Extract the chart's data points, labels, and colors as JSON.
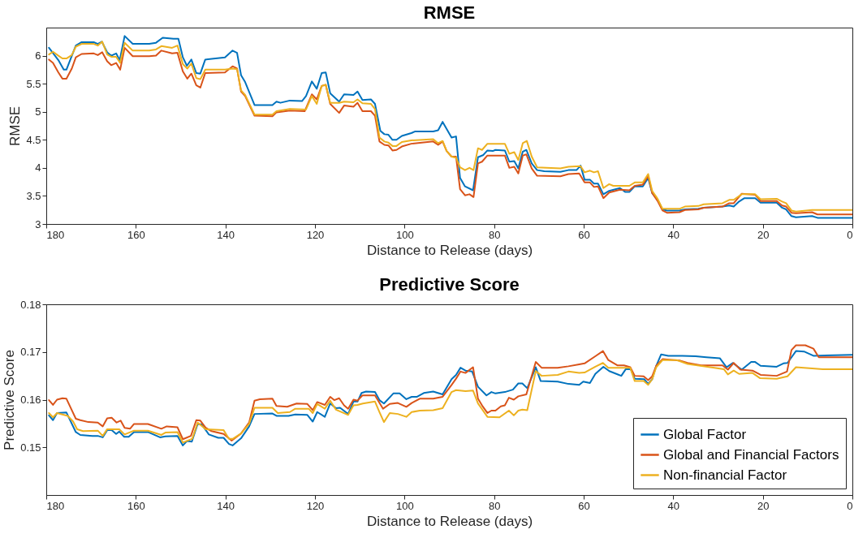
{
  "chart_data": [
    {
      "type": "line",
      "title": "RMSE",
      "xlabel": "Distance to Release (days)",
      "ylabel": "RMSE",
      "xlim": [
        180,
        0
      ],
      "xticks": [
        180,
        160,
        140,
        120,
        100,
        80,
        60,
        40,
        20,
        0
      ],
      "ylim": [
        3,
        6.5
      ],
      "yticks": [
        3,
        3.5,
        4,
        4.5,
        5,
        5.5,
        6
      ],
      "legend": false,
      "series": [
        {
          "color": "#0072bd",
          "x": [
            179.4,
            177.3,
            176.1,
            175.5,
            173.4,
            172.1,
            169.4,
            168.5,
            167.6,
            166.4,
            165.5,
            164.4,
            163.6,
            162.5,
            160.7,
            157.0,
            155.5,
            154.0,
            151.6,
            150.5,
            149.5,
            148.6,
            147.6,
            146.5,
            145.6,
            144.5,
            140.1,
            138.4,
            137.4,
            136.5,
            135.6,
            133.5,
            129.5,
            128.6,
            127.7,
            125.6,
            122.9,
            122.0,
            120.7,
            119.6,
            118.5,
            117.6,
            116.6,
            114.6,
            113.5,
            111.4,
            110.5,
            109.4,
            107.5,
            106.6,
            105.4,
            104.5,
            103.6,
            102.7,
            101.8,
            100.6,
            98.5,
            97.6,
            93.6,
            92.5,
            91.5,
            89.5,
            88.5,
            87.6,
            86.5,
            84.7,
            83.6,
            82.4,
            81.5,
            80.3,
            79.7,
            77.6,
            76.6,
            75.5,
            74.6,
            73.6,
            72.8,
            71.6,
            70.4,
            68.8,
            65.2,
            63.4,
            61.6,
            60.7,
            59.8,
            58.6,
            57.7,
            56.8,
            55.6,
            54.3,
            51.9,
            50.7,
            49.8,
            48.6,
            46.8,
            45.6,
            44.7,
            43.5,
            42.4,
            41.4,
            38.6,
            37.4,
            34.4,
            33.2,
            29.0,
            27.5,
            26.5,
            25.3,
            24.1,
            21.7,
            20.5,
            16.9,
            15.7,
            14.8,
            13.6,
            12.6,
            9.0,
            7.8,
            0
          ],
          "values": [
            6.14,
            5.92,
            5.75,
            5.75,
            6.18,
            6.24,
            6.24,
            6.21,
            6.25,
            6.06,
            6.0,
            6.04,
            5.92,
            6.35,
            6.21,
            6.21,
            6.23,
            6.32,
            6.3,
            6.3,
            5.97,
            5.82,
            5.93,
            5.69,
            5.68,
            5.93,
            5.97,
            6.09,
            6.05,
            5.65,
            5.53,
            5.12,
            5.12,
            5.18,
            5.16,
            5.2,
            5.19,
            5.28,
            5.54,
            5.41,
            5.69,
            5.7,
            5.33,
            5.18,
            5.31,
            5.3,
            5.36,
            5.21,
            5.22,
            5.14,
            4.66,
            4.6,
            4.59,
            4.5,
            4.5,
            4.57,
            4.62,
            4.65,
            4.65,
            4.67,
            4.82,
            4.54,
            4.56,
            3.82,
            3.67,
            3.6,
            4.19,
            4.23,
            4.31,
            4.3,
            4.32,
            4.31,
            4.11,
            4.12,
            3.99,
            4.29,
            4.32,
            4.08,
            3.96,
            3.94,
            3.93,
            3.96,
            3.96,
            4.04,
            3.79,
            3.79,
            3.72,
            3.72,
            3.53,
            3.59,
            3.64,
            3.57,
            3.57,
            3.67,
            3.67,
            3.82,
            3.55,
            3.43,
            3.26,
            3.24,
            3.24,
            3.26,
            3.27,
            3.29,
            3.31,
            3.33,
            3.31,
            3.4,
            3.46,
            3.46,
            3.38,
            3.38,
            3.29,
            3.26,
            3.14,
            3.12,
            3.14,
            3.11,
            3.11
          ]
        },
        {
          "color": "#d95319",
          "x": [
            179.4,
            178.5,
            177.3,
            176.4,
            175.5,
            174.3,
            173.4,
            172.1,
            169.4,
            168.5,
            167.5,
            166.4,
            165.5,
            164.4,
            163.5,
            162.5,
            160.7,
            157.0,
            155.5,
            154.3,
            151.9,
            150.7,
            149.5,
            148.5,
            147.6,
            146.5,
            145.6,
            144.5,
            140.1,
            138.4,
            137.4,
            136.5,
            135.6,
            133.5,
            129.5,
            128.6,
            125.6,
            122.3,
            120.7,
            119.6,
            118.5,
            117.6,
            116.6,
            114.6,
            113.5,
            111.4,
            110.5,
            109.4,
            107.5,
            106.6,
            105.6,
            104.5,
            103.6,
            102.7,
            101.8,
            100.6,
            98.5,
            93.6,
            92.5,
            91.5,
            90.6,
            89.5,
            88.5,
            87.6,
            86.5,
            85.5,
            84.6,
            83.6,
            82.7,
            81.5,
            77.6,
            76.6,
            75.5,
            74.6,
            73.6,
            72.8,
            71.6,
            70.4,
            65.2,
            63.4,
            61.0,
            59.8,
            58.6,
            57.7,
            56.8,
            55.6,
            54.3,
            51.9,
            49.8,
            48.6,
            46.8,
            45.6,
            44.7,
            43.5,
            42.4,
            41.4,
            38.6,
            37.4,
            34.4,
            33.2,
            29.0,
            27.5,
            26.5,
            24.7,
            21.7,
            20.5,
            16.9,
            15.7,
            14.8,
            13.6,
            12.6,
            9.0,
            7.8,
            0
          ],
          "values": [
            5.93,
            5.87,
            5.7,
            5.59,
            5.59,
            5.77,
            5.97,
            6.03,
            6.04,
            6.01,
            6.06,
            5.9,
            5.83,
            5.87,
            5.75,
            6.14,
            5.99,
            5.99,
            6.0,
            6.09,
            6.04,
            6.05,
            5.72,
            5.59,
            5.68,
            5.47,
            5.43,
            5.69,
            5.7,
            5.81,
            5.77,
            5.36,
            5.28,
            4.93,
            4.92,
            4.99,
            5.02,
            5.01,
            5.31,
            5.22,
            5.46,
            5.48,
            5.14,
            4.98,
            5.11,
            5.09,
            5.16,
            5.01,
            5.01,
            4.93,
            4.47,
            4.41,
            4.4,
            4.31,
            4.32,
            4.38,
            4.43,
            4.47,
            4.41,
            4.47,
            4.3,
            4.2,
            4.2,
            3.62,
            3.51,
            3.53,
            3.48,
            4.08,
            4.11,
            4.22,
            4.22,
            4.0,
            4.02,
            3.9,
            4.22,
            4.24,
            3.99,
            3.86,
            3.85,
            3.89,
            3.9,
            3.74,
            3.74,
            3.66,
            3.67,
            3.46,
            3.56,
            3.61,
            3.6,
            3.68,
            3.7,
            3.86,
            3.55,
            3.41,
            3.24,
            3.2,
            3.21,
            3.25,
            3.26,
            3.29,
            3.31,
            3.37,
            3.37,
            3.54,
            3.52,
            3.41,
            3.41,
            3.33,
            3.31,
            3.2,
            3.19,
            3.21,
            3.17,
            3.17
          ]
        },
        {
          "color": "#edb120",
          "x": [
            179.4,
            178.5,
            177.3,
            176.4,
            175.5,
            174.3,
            173.4,
            172.1,
            169.4,
            168.5,
            167.5,
            166.4,
            165.5,
            164.4,
            163.5,
            162.5,
            160.7,
            157.0,
            155.5,
            154.3,
            151.9,
            150.7,
            149.5,
            148.5,
            147.6,
            146.5,
            145.6,
            144.5,
            140.1,
            138.4,
            137.4,
            136.5,
            135.6,
            133.5,
            129.5,
            128.6,
            125.6,
            122.0,
            120.7,
            119.6,
            118.5,
            117.6,
            116.6,
            114.6,
            113.5,
            111.4,
            110.5,
            109.4,
            107.5,
            106.6,
            105.6,
            104.5,
            103.6,
            102.7,
            101.8,
            100.6,
            98.5,
            93.6,
            92.5,
            91.5,
            90.6,
            89.5,
            88.5,
            87.6,
            86.5,
            85.5,
            84.6,
            83.6,
            82.7,
            81.5,
            77.6,
            76.6,
            75.5,
            74.6,
            73.6,
            72.7,
            71.6,
            70.4,
            65.2,
            63.4,
            60.7,
            59.8,
            58.6,
            57.7,
            56.8,
            55.6,
            54.3,
            53.4,
            49.8,
            48.6,
            46.8,
            45.6,
            44.7,
            43.5,
            42.4,
            41.4,
            38.6,
            37.4,
            34.4,
            33.2,
            29.0,
            27.5,
            26.5,
            24.7,
            21.7,
            20.5,
            16.9,
            15.7,
            14.8,
            13.6,
            12.6,
            9.0,
            0
          ],
          "values": [
            6.02,
            6.07,
            6.0,
            5.95,
            5.95,
            6.01,
            6.16,
            6.21,
            6.21,
            6.18,
            6.25,
            6.02,
            5.98,
            5.98,
            5.87,
            6.23,
            6.09,
            6.09,
            6.11,
            6.17,
            6.14,
            6.18,
            5.85,
            5.77,
            5.86,
            5.6,
            5.58,
            5.75,
            5.75,
            5.77,
            5.76,
            5.38,
            5.3,
            4.95,
            4.95,
            5.01,
            5.05,
            5.04,
            5.28,
            5.14,
            5.46,
            5.48,
            5.16,
            5.16,
            5.18,
            5.17,
            5.22,
            5.15,
            5.14,
            5.05,
            4.54,
            4.47,
            4.45,
            4.39,
            4.39,
            4.46,
            4.49,
            4.51,
            4.44,
            4.48,
            4.3,
            4.2,
            4.18,
            4.01,
            3.96,
            4.0,
            3.96,
            4.35,
            4.32,
            4.43,
            4.43,
            4.25,
            4.28,
            4.14,
            4.44,
            4.48,
            4.2,
            4.01,
            3.99,
            4.02,
            4.03,
            3.92,
            3.95,
            3.92,
            3.94,
            3.64,
            3.71,
            3.68,
            3.68,
            3.74,
            3.74,
            3.89,
            3.59,
            3.45,
            3.27,
            3.27,
            3.27,
            3.31,
            3.32,
            3.35,
            3.37,
            3.43,
            3.43,
            3.53,
            3.53,
            3.44,
            3.45,
            3.4,
            3.37,
            3.24,
            3.22,
            3.25,
            3.25
          ]
        }
      ]
    },
    {
      "type": "line",
      "title": "Predictive Score",
      "xlabel": "Distance to Release (days)",
      "ylabel": "Predictive Score",
      "xlim": [
        180,
        0
      ],
      "xticks": [
        180,
        160,
        140,
        120,
        100,
        80,
        60,
        40,
        20,
        0
      ],
      "ylim": [
        0.14,
        0.18
      ],
      "yticks": [
        0.15,
        0.16,
        0.17,
        0.18
      ],
      "legend": "bottom right",
      "series": [
        {
          "name": "Global Factor",
          "color": "#0072bd",
          "x": [
            179.4,
            178.5,
            177.6,
            175.5,
            173.4,
            172.4,
            169.7,
            168.5,
            167.4,
            166.4,
            165.4,
            164.4,
            163.7,
            162.6,
            161.6,
            160.4,
            157.3,
            154.6,
            153.4,
            150.7,
            149.5,
            148.6,
            147.5,
            146.2,
            145.3,
            143.7,
            141.6,
            140.4,
            139.2,
            138.4,
            136.5,
            134.7,
            133.5,
            129.5,
            128.6,
            125.9,
            124.4,
            121.7,
            120.5,
            119.5,
            117.8,
            116.6,
            115.3,
            114.4,
            112.6,
            111.4,
            110.5,
            109.6,
            108.6,
            106.6,
            105.6,
            104.6,
            102.5,
            101.1,
            99.6,
            98.4,
            97.2,
            95.7,
            93.6,
            91.5,
            89.5,
            88.5,
            87.5,
            86.4,
            84.9,
            83.6,
            81.7,
            80.6,
            79.7,
            77.6,
            75.8,
            74.6,
            73.7,
            72.6,
            70.7,
            69.6,
            65.8,
            63.4,
            61.0,
            60.1,
            58.6,
            57.4,
            55.6,
            54.3,
            51.6,
            50.6,
            49.5,
            48.6,
            46.5,
            45.6,
            44.7,
            43.8,
            42.7,
            41.1,
            38.0,
            35.0,
            32.6,
            29.6,
            28.1,
            26.7,
            24.7,
            22.6,
            21.7,
            20.5,
            16.9,
            15.4,
            14.5,
            12.6,
            10.8,
            8.7,
            0
          ],
          "values": [
            0.1567,
            0.1557,
            0.1572,
            0.1573,
            0.1532,
            0.1526,
            0.1524,
            0.1524,
            0.1521,
            0.1536,
            0.1536,
            0.1528,
            0.1533,
            0.1522,
            0.1522,
            0.1532,
            0.1532,
            0.1521,
            0.1523,
            0.1524,
            0.1504,
            0.1513,
            0.1512,
            0.1549,
            0.1548,
            0.1527,
            0.152,
            0.152,
            0.1507,
            0.1504,
            0.1519,
            0.1544,
            0.157,
            0.1571,
            0.1566,
            0.1566,
            0.1569,
            0.1568,
            0.1554,
            0.1574,
            0.1564,
            0.1592,
            0.1582,
            0.1583,
            0.157,
            0.1596,
            0.1596,
            0.1614,
            0.1617,
            0.1616,
            0.1599,
            0.1592,
            0.1613,
            0.1613,
            0.1601,
            0.1606,
            0.1606,
            0.1614,
            0.1617,
            0.1611,
            0.1643,
            0.1652,
            0.1667,
            0.1661,
            0.1659,
            0.1627,
            0.1609,
            0.1616,
            0.1613,
            0.1616,
            0.1621,
            0.1634,
            0.1634,
            0.1624,
            0.1668,
            0.1639,
            0.1638,
            0.1633,
            0.1631,
            0.1638,
            0.1635,
            0.1654,
            0.1669,
            0.166,
            0.165,
            0.1664,
            0.1664,
            0.1644,
            0.1643,
            0.1633,
            0.1643,
            0.1671,
            0.1695,
            0.1692,
            0.1692,
            0.1691,
            0.1689,
            0.1687,
            0.1668,
            0.1677,
            0.1663,
            0.1679,
            0.1679,
            0.1671,
            0.1669,
            0.1676,
            0.1677,
            0.1702,
            0.1701,
            0.1692,
            0.1694
          ]
        },
        {
          "name": "Global and Financial Factors",
          "color": "#d95319",
          "x": [
            179.4,
            178.5,
            177.6,
            176.4,
            175.5,
            173.4,
            172.4,
            170.6,
            168.5,
            167.4,
            166.4,
            165.4,
            164.3,
            163.4,
            162.5,
            161.3,
            160.4,
            157.3,
            154.3,
            153.1,
            150.7,
            149.5,
            147.7,
            146.5,
            145.6,
            144.4,
            143.1,
            140.4,
            138.6,
            136.5,
            134.7,
            133.5,
            132.3,
            129.5,
            128.6,
            126.2,
            124.1,
            121.7,
            120.5,
            119.5,
            117.8,
            116.6,
            115.7,
            114.6,
            113.5,
            112.6,
            111.4,
            110.5,
            109.4,
            106.6,
            104.8,
            103.3,
            101.5,
            99.6,
            98.4,
            96.6,
            93.6,
            91.5,
            89.5,
            88.5,
            87.5,
            86.4,
            84.7,
            83.6,
            82.7,
            81.5,
            80.6,
            79.7,
            78.5,
            77.6,
            76.7,
            75.6,
            74.6,
            72.8,
            70.7,
            69.4,
            65.8,
            63.4,
            61.0,
            59.8,
            57.4,
            55.7,
            54.5,
            52.5,
            51.0,
            49.6,
            48.6,
            46.6,
            45.6,
            44.7,
            43.8,
            42.4,
            39.8,
            38.6,
            36.8,
            33.8,
            29.0,
            27.8,
            26.5,
            25.0,
            22.3,
            20.5,
            16.9,
            14.6,
            13.6,
            12.6,
            10.5,
            8.7,
            7.5,
            0
          ],
          "values": [
            0.1599,
            0.1589,
            0.16,
            0.1603,
            0.1602,
            0.156,
            0.1557,
            0.1553,
            0.1552,
            0.1544,
            0.1561,
            0.1562,
            0.1552,
            0.1556,
            0.1541,
            0.1539,
            0.1549,
            0.1549,
            0.1539,
            0.1544,
            0.1542,
            0.1517,
            0.1524,
            0.1557,
            0.1556,
            0.1541,
            0.1534,
            0.1528,
            0.1514,
            0.1529,
            0.1552,
            0.1598,
            0.1601,
            0.1602,
            0.1587,
            0.1585,
            0.1592,
            0.1591,
            0.1578,
            0.1595,
            0.1589,
            0.1606,
            0.1599,
            0.1603,
            0.1588,
            0.1581,
            0.16,
            0.1598,
            0.1609,
            0.1609,
            0.1581,
            0.1591,
            0.1593,
            0.1585,
            0.1593,
            0.1602,
            0.1602,
            0.1606,
            0.1631,
            0.1644,
            0.1659,
            0.1656,
            0.1668,
            0.1602,
            0.1588,
            0.1572,
            0.1577,
            0.1577,
            0.1586,
            0.1588,
            0.1604,
            0.16,
            0.1607,
            0.1611,
            0.1679,
            0.1667,
            0.1667,
            0.167,
            0.1674,
            0.1676,
            0.1691,
            0.1702,
            0.1683,
            0.1672,
            0.1672,
            0.1668,
            0.165,
            0.1649,
            0.1641,
            0.1649,
            0.1671,
            0.1685,
            0.1683,
            0.1682,
            0.1677,
            0.1672,
            0.1672,
            0.1663,
            0.1677,
            0.1663,
            0.1661,
            0.1652,
            0.165,
            0.1659,
            0.1704,
            0.1714,
            0.1714,
            0.1707,
            0.1689,
            0.1689
          ]
        },
        {
          "name": "Non-financial Factor",
          "color": "#edb120",
          "x": [
            179.4,
            178.5,
            177.6,
            175.2,
            174.0,
            173.1,
            171.8,
            168.5,
            167.4,
            166.4,
            163.7,
            162.5,
            160.4,
            157.3,
            154.3,
            153.4,
            150.7,
            149.5,
            147.4,
            146.2,
            144.4,
            140.4,
            139.2,
            138.3,
            136.5,
            134.7,
            133.5,
            129.5,
            128.3,
            125.6,
            124.4,
            121.4,
            120.5,
            119.5,
            117.8,
            116.6,
            115.3,
            112.6,
            111.4,
            110.5,
            109.3,
            106.6,
            105.6,
            104.6,
            103.3,
            101.5,
            99.6,
            98.4,
            96.6,
            93.6,
            91.5,
            89.5,
            88.5,
            86.4,
            84.7,
            83.6,
            81.5,
            78.8,
            76.7,
            75.6,
            74.6,
            73.7,
            72.6,
            70.7,
            69.4,
            65.8,
            63.4,
            61.0,
            59.8,
            57.4,
            55.7,
            54.5,
            49.6,
            48.6,
            46.6,
            45.6,
            44.7,
            43.8,
            42.4,
            39.2,
            36.8,
            30.8,
            28.7,
            27.8,
            26.5,
            25.3,
            22.3,
            20.6,
            16.9,
            14.5,
            12.6,
            6.6,
            0
          ],
          "values": [
            0.1572,
            0.1563,
            0.1572,
            0.1566,
            0.1554,
            0.1538,
            0.1534,
            0.1535,
            0.1524,
            0.1538,
            0.1538,
            0.1527,
            0.1535,
            0.1535,
            0.1526,
            0.1531,
            0.1532,
            0.151,
            0.1518,
            0.1552,
            0.1538,
            0.1536,
            0.1518,
            0.1518,
            0.1529,
            0.1549,
            0.1583,
            0.1583,
            0.1572,
            0.1574,
            0.1581,
            0.1581,
            0.1572,
            0.1591,
            0.1581,
            0.1598,
            0.1579,
            0.1568,
            0.1588,
            0.1589,
            0.1592,
            0.1596,
            0.1574,
            0.1553,
            0.1572,
            0.157,
            0.1564,
            0.1574,
            0.1577,
            0.1578,
            0.1582,
            0.1616,
            0.162,
            0.1618,
            0.1619,
            0.1592,
            0.1564,
            0.1563,
            0.1577,
            0.1567,
            0.1577,
            0.1579,
            0.1578,
            0.166,
            0.165,
            0.1652,
            0.1659,
            0.1656,
            0.1657,
            0.1669,
            0.1677,
            0.1667,
            0.1667,
            0.1639,
            0.1639,
            0.1631,
            0.1643,
            0.1668,
            0.1683,
            0.1683,
            0.1675,
            0.1667,
            0.1664,
            0.1653,
            0.1661,
            0.1654,
            0.1656,
            0.1645,
            0.1644,
            0.1649,
            0.1668,
            0.1664,
            0.1664
          ]
        }
      ]
    }
  ]
}
